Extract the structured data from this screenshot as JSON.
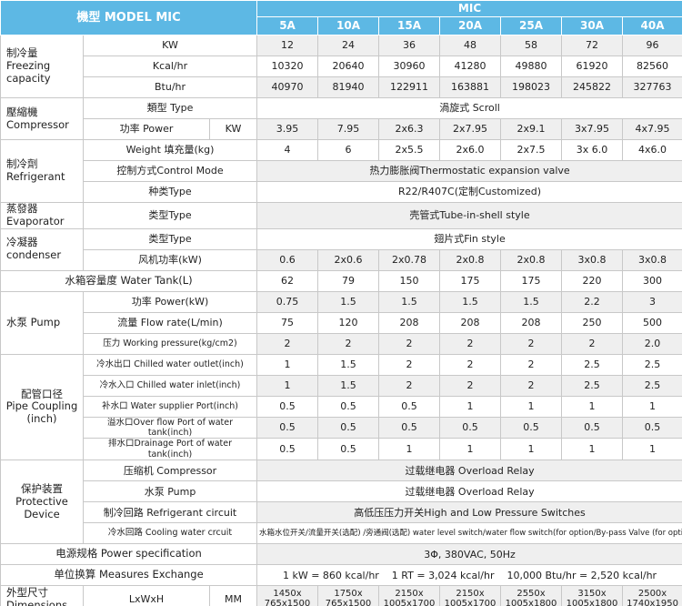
{
  "header": {
    "title": "機型 MODEL MIC",
    "group": "MIC",
    "models": [
      "5A",
      "10A",
      "15A",
      "20A",
      "25A",
      "30A",
      "40A"
    ]
  },
  "sections": [
    {
      "label": "制冷量\nFreezing capacity",
      "rows": [
        {
          "label": "KW",
          "values": [
            "12",
            "24",
            "36",
            "48",
            "58",
            "72",
            "96"
          ]
        },
        {
          "label": "Kcal/hr",
          "values": [
            "10320",
            "20640",
            "30960",
            "41280",
            "49880",
            "61920",
            "82560"
          ]
        },
        {
          "label": "Btu/hr",
          "values": [
            "40970",
            "81940",
            "122911",
            "163881",
            "198023",
            "245822",
            "327763"
          ]
        }
      ]
    },
    {
      "label": "壓縮機 Compressor",
      "rows": [
        {
          "label": "類型 Type",
          "value": "渦旋式 Scroll"
        },
        {
          "label": "功率 Power",
          "unit": "KW",
          "values": [
            "3.95",
            "7.95",
            "2x6.3",
            "2x7.95",
            "2x9.1",
            "3x7.95",
            "4x7.95"
          ]
        }
      ]
    },
    {
      "label": "制冷劑 Refrigerant",
      "rows": [
        {
          "label": "Weight 填充量(kg)",
          "values": [
            "4",
            "6",
            "2x5.5",
            "2x6.0",
            "2x7.5",
            "3x 6.0",
            "4x6.0"
          ]
        },
        {
          "label": "控制方式Control Mode",
          "value": "热力膨胀阀Thermostatic expansion valve"
        },
        {
          "label": "种类Type",
          "value": "R22/R407C(定制Customized)"
        }
      ]
    },
    {
      "label": "蒸發器 Evaporator",
      "rows": [
        {
          "label": "类型Type",
          "value": "壳管式Tube-in-shell style"
        }
      ]
    },
    {
      "label": "冷凝器 condenser",
      "rows": [
        {
          "label": "类型Type",
          "value": "翅片式Fin style"
        },
        {
          "label": "风机功率(kW)",
          "values": [
            "0.6",
            "2x0.6",
            "2x0.78",
            "2x0.8",
            "2x0.8",
            "3x0.8",
            "3x0.8"
          ]
        }
      ]
    },
    {
      "label": "水箱容量度 Water Tank(L)",
      "values": [
        "62",
        "79",
        "150",
        "175",
        "175",
        "220",
        "300"
      ]
    },
    {
      "label": "水泵 Pump",
      "rows": [
        {
          "label": "功率 Power(kW)",
          "values": [
            "0.75",
            "1.5",
            "1.5",
            "1.5",
            "1.5",
            "2.2",
            "3"
          ]
        },
        {
          "label": "流量 Flow rate(L/min)",
          "values": [
            "75",
            "120",
            "208",
            "208",
            "208",
            "250",
            "500"
          ]
        },
        {
          "label": "压力 Working pressure(kg/cm2)",
          "values": [
            "2",
            "2",
            "2",
            "2",
            "2",
            "2",
            "2.0"
          ]
        }
      ]
    },
    {
      "label": "配管口径\nPipe Coupling\n(inch)",
      "rows": [
        {
          "label": "冷水出口 Chilled water outlet(inch)",
          "values": [
            "1",
            "1.5",
            "2",
            "2",
            "2",
            "2.5",
            "2.5"
          ]
        },
        {
          "label": "冷水入口 Chilled water inlet(inch)",
          "values": [
            "1",
            "1.5",
            "2",
            "2",
            "2",
            "2.5",
            "2.5"
          ]
        },
        {
          "label": "补水口 Water supplier Port(inch)",
          "values": [
            "0.5",
            "0.5",
            "0.5",
            "1",
            "1",
            "1",
            "1"
          ]
        },
        {
          "label": "溢水口Over flow Port of water tank(inch)",
          "values": [
            "0.5",
            "0.5",
            "0.5",
            "0.5",
            "0.5",
            "0.5",
            "0.5"
          ]
        },
        {
          "label": "排水口Drainage Port of water tank(inch)",
          "values": [
            "0.5",
            "0.5",
            "1",
            "1",
            "1",
            "1",
            "1"
          ]
        }
      ]
    },
    {
      "label": "保护装置\nProtective\nDevice",
      "rows": [
        {
          "label": "压缩机 Compressor",
          "value": "过载继电器 Overload Relay"
        },
        {
          "label": "水泵 Pump",
          "value": "过载继电器 Overload Relay"
        },
        {
          "label": "制冷回路 Refrigerant circuit",
          "value": "高低压压力开关High and Low Pressure Switches"
        },
        {
          "label": "冷水回路 Cooling water crcuit",
          "value": "水箱水位开关/流量开关(选配) /旁通阀(选配) water level switch/water flow switch(for option/By-pass Valve (for option)"
        }
      ]
    },
    {
      "label": "电源规格 Power specification",
      "value": "3Φ, 380VAC, 50Hz"
    },
    {
      "label": "单位换算 Measures Exchange",
      "value": "1 kW = 860 kcal/hr    1 RT = 3,024 kcal/hr    10,000 Btu/hr = 2,520 kcal/hr"
    },
    {
      "label": "外型尺寸 Dimensions",
      "rows": [
        {
          "label": "LxWxH",
          "unit": "MM",
          "values": [
            "1450x\n765x1500",
            "1750x\n765x1500",
            "2150x\n1005x1700",
            "2150x\n1005x1700",
            "2550x\n1005x1800",
            "3150x\n1005x1800",
            "2500x\n1740x1950"
          ]
        }
      ]
    }
  ]
}
